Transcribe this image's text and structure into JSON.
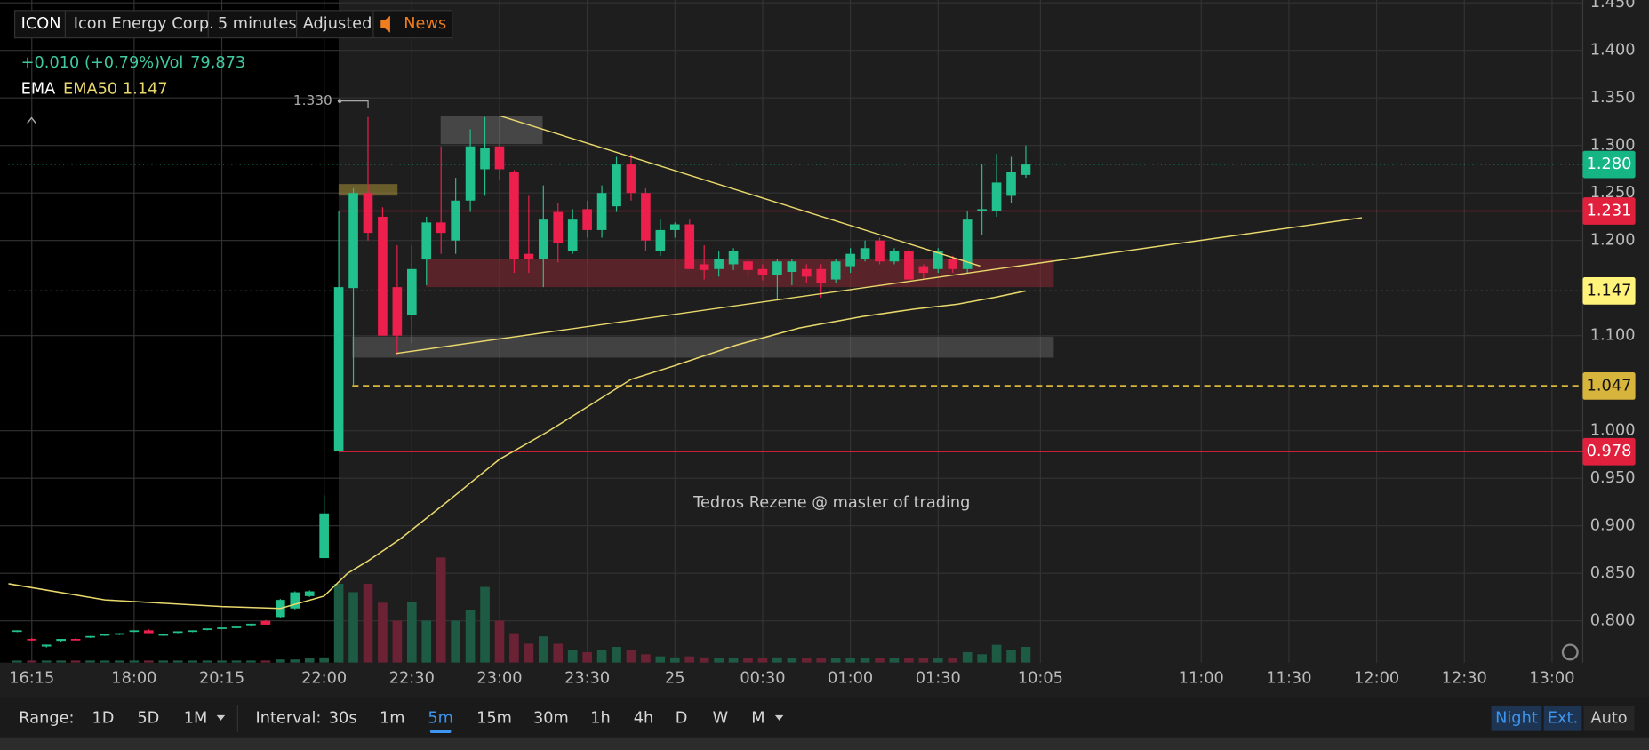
{
  "header": {
    "symbol": "ICON",
    "company": "Icon Energy Corp.",
    "interval": "5 minutes",
    "adjust": "Adjusted",
    "news": "News"
  },
  "chart_data": {
    "type": "candlestick",
    "change": "+0.010 (+0.79%)",
    "volume_label": "Vol",
    "volume_total": "79,873",
    "study": "EMA",
    "study_value": "EMA50 1.147",
    "watermark": "Tedros Rezene @ master of trading",
    "high_label": "1.330",
    "up_color": "#22c08c",
    "down_color": "#ec1f4d",
    "up_volume_color": "#1d5b45",
    "down_volume_color": "#6b2234",
    "xlim": [
      -21.6,
      86.1
    ],
    "ylim": [
      0.756,
      1.453
    ],
    "vlim": [
      0,
      100
    ],
    "grid": true,
    "yticks": [
      {
        "value": 1.45,
        "label": "1.450"
      },
      {
        "value": 1.4,
        "label": "1.400"
      },
      {
        "value": 1.35,
        "label": "1.350"
      },
      {
        "value": 1.3,
        "label": "1.300"
      },
      {
        "value": 1.25,
        "label": "1.250"
      },
      {
        "value": 1.2,
        "label": "1.200"
      },
      {
        "value": 1.1,
        "label": "1.100"
      },
      {
        "value": 1.0,
        "label": "1.000"
      },
      {
        "value": 0.95,
        "label": "0.950"
      },
      {
        "value": 0.9,
        "label": "0.900"
      },
      {
        "value": 0.85,
        "label": "0.850"
      },
      {
        "value": 0.8,
        "label": "0.800"
      }
    ],
    "xticks": [
      {
        "value": -20,
        "label": "16:15"
      },
      {
        "value": -13,
        "label": "18:00"
      },
      {
        "value": -7,
        "label": "20:15"
      },
      {
        "value": 0,
        "label": "22:00"
      },
      {
        "value": 6,
        "label": "22:30"
      },
      {
        "value": 12,
        "label": "23:00"
      },
      {
        "value": 18,
        "label": "23:30"
      },
      {
        "value": 24,
        "label": "25"
      },
      {
        "value": 30,
        "label": "00:30"
      },
      {
        "value": 36,
        "label": "01:00"
      },
      {
        "value": 42,
        "label": "01:30"
      },
      {
        "value": 49,
        "label": "10:05"
      },
      {
        "value": 60,
        "label": "11:00"
      },
      {
        "value": 66,
        "label": "11:30"
      },
      {
        "value": 72,
        "label": "12:00"
      },
      {
        "value": 78,
        "label": "12:30"
      },
      {
        "value": 84,
        "label": "13:00"
      }
    ],
    "x": [
      -21,
      -20,
      -19,
      -18,
      -17,
      -16,
      -15,
      -14,
      -13,
      -12,
      -11,
      -10,
      -9,
      -8,
      -7,
      -6,
      -5,
      -4,
      -3,
      -2,
      -1,
      0,
      1,
      2,
      3,
      4,
      5,
      6,
      7,
      8,
      9,
      10,
      11,
      12,
      13,
      14,
      15,
      16,
      17,
      18,
      19,
      20,
      21,
      22,
      23,
      24,
      25,
      26,
      27,
      28,
      29,
      30,
      31,
      32,
      33,
      34,
      35,
      36,
      37,
      38,
      39,
      40,
      41,
      42,
      43,
      44,
      45,
      46,
      47,
      48
    ],
    "ohlc": [
      [
        0.789,
        0.79,
        0.788,
        0.79
      ],
      [
        0.781,
        0.782,
        0.779,
        0.78
      ],
      [
        0.773,
        0.775,
        0.772,
        0.775
      ],
      [
        0.779,
        0.781,
        0.778,
        0.781
      ],
      [
        0.781,
        0.782,
        0.78,
        0.78
      ],
      [
        0.783,
        0.784,
        0.782,
        0.784
      ],
      [
        0.785,
        0.786,
        0.784,
        0.786
      ],
      [
        0.786,
        0.787,
        0.785,
        0.787
      ],
      [
        0.789,
        0.79,
        0.788,
        0.79
      ],
      [
        0.79,
        0.791,
        0.787,
        0.787
      ],
      [
        0.785,
        0.786,
        0.784,
        0.786
      ],
      [
        0.788,
        0.789,
        0.787,
        0.789
      ],
      [
        0.789,
        0.79,
        0.788,
        0.79
      ],
      [
        0.791,
        0.792,
        0.79,
        0.792
      ],
      [
        0.792,
        0.793,
        0.791,
        0.793
      ],
      [
        0.793,
        0.794,
        0.792,
        0.794
      ],
      [
        0.796,
        0.797,
        0.795,
        0.797
      ],
      [
        0.8,
        0.801,
        0.796,
        0.796
      ],
      [
        0.804,
        0.823,
        0.803,
        0.822
      ],
      [
        0.813,
        0.831,
        0.812,
        0.83
      ],
      [
        0.826,
        0.832,
        0.825,
        0.831
      ],
      [
        0.866,
        0.932,
        0.866,
        0.913
      ],
      [
        0.979,
        1.231,
        0.979,
        1.151
      ],
      [
        1.15,
        1.255,
        1.048,
        1.25
      ],
      [
        1.25,
        1.33,
        1.2,
        1.208
      ],
      [
        1.225,
        1.235,
        1.1,
        1.1
      ],
      [
        1.151,
        1.195,
        1.08,
        1.1
      ],
      [
        1.122,
        1.195,
        1.092,
        1.17
      ],
      [
        1.18,
        1.225,
        1.153,
        1.219
      ],
      [
        1.219,
        1.299,
        1.186,
        1.208
      ],
      [
        1.2,
        1.266,
        1.186,
        1.242
      ],
      [
        1.242,
        1.317,
        1.23,
        1.299
      ],
      [
        1.275,
        1.33,
        1.247,
        1.297
      ],
      [
        1.299,
        1.33,
        1.264,
        1.275
      ],
      [
        1.272,
        1.274,
        1.166,
        1.181
      ],
      [
        1.186,
        1.247,
        1.166,
        1.181
      ],
      [
        1.181,
        1.258,
        1.151,
        1.222
      ],
      [
        1.23,
        1.239,
        1.177,
        1.197
      ],
      [
        1.189,
        1.233,
        1.186,
        1.222
      ],
      [
        1.233,
        1.242,
        1.203,
        1.211
      ],
      [
        1.211,
        1.258,
        1.203,
        1.25
      ],
      [
        1.236,
        1.288,
        1.23,
        1.28
      ],
      [
        1.28,
        1.291,
        1.242,
        1.25
      ],
      [
        1.25,
        1.255,
        1.189,
        1.2
      ],
      [
        1.189,
        1.222,
        1.184,
        1.211
      ],
      [
        1.211,
        1.219,
        1.203,
        1.217
      ],
      [
        1.217,
        1.222,
        1.17,
        1.17
      ],
      [
        1.175,
        1.195,
        1.159,
        1.169
      ],
      [
        1.17,
        1.189,
        1.162,
        1.181
      ],
      [
        1.175,
        1.192,
        1.169,
        1.189
      ],
      [
        1.178,
        1.181,
        1.162,
        1.169
      ],
      [
        1.17,
        1.175,
        1.158,
        1.164
      ],
      [
        1.164,
        1.181,
        1.137,
        1.178
      ],
      [
        1.167,
        1.181,
        1.153,
        1.178
      ],
      [
        1.17,
        1.175,
        1.155,
        1.162
      ],
      [
        1.17,
        1.175,
        1.14,
        1.155
      ],
      [
        1.159,
        1.181,
        1.155,
        1.178
      ],
      [
        1.173,
        1.192,
        1.166,
        1.186
      ],
      [
        1.181,
        1.2,
        1.178,
        1.192
      ],
      [
        1.2,
        1.203,
        1.175,
        1.178
      ],
      [
        1.178,
        1.192,
        1.175,
        1.189
      ],
      [
        1.189,
        1.192,
        1.155,
        1.159
      ],
      [
        1.173,
        1.175,
        1.159,
        1.166
      ],
      [
        1.17,
        1.192,
        1.166,
        1.189
      ],
      [
        1.181,
        1.184,
        1.166,
        1.17
      ],
      [
        1.17,
        1.231,
        1.166,
        1.222
      ],
      [
        1.231,
        1.28,
        1.206,
        1.233
      ],
      [
        1.231,
        1.291,
        1.225,
        1.261
      ],
      [
        1.247,
        1.288,
        1.239,
        1.272
      ],
      [
        1.269,
        1.3,
        1.266,
        1.28
      ]
    ],
    "volume": [
      2,
      2,
      2,
      2,
      2,
      2,
      2,
      2,
      2,
      2,
      2,
      2,
      2,
      2,
      2,
      2,
      2,
      2,
      3,
      3,
      4,
      5,
      75,
      67,
      75,
      57,
      40,
      58,
      40,
      100,
      40,
      50,
      72,
      40,
      28,
      18,
      25,
      18,
      12,
      10,
      12,
      15,
      12,
      8,
      6,
      5,
      6,
      5,
      4,
      4,
      4,
      4,
      5,
      4,
      4,
      4,
      4,
      4,
      4,
      4,
      4,
      4,
      4,
      4,
      4,
      10,
      8,
      17,
      12,
      15
    ],
    "ema_line": {
      "color": "#e9d86c",
      "x": [
        -21.6,
        -15,
        -7,
        -3,
        0,
        1.6,
        3,
        5.2,
        8.8,
        12,
        15.3,
        18.1,
        21,
        23.9,
        28.2,
        32.5,
        36.8,
        40.4,
        43.3,
        45.8,
        48
      ],
      "values": [
        0.839,
        0.822,
        0.815,
        0.813,
        0.826,
        0.85,
        0.863,
        0.886,
        0.93,
        0.97,
        0.999,
        1.026,
        1.054,
        1.068,
        1.09,
        1.108,
        1.12,
        1.128,
        1.133,
        1.14,
        1.147
      ]
    },
    "levels": [
      {
        "value": 1.28,
        "label": "1.280",
        "color": "#16b584",
        "text_color": "#ffffff",
        "style": "dotted"
      },
      {
        "value": 1.231,
        "label": "1.231",
        "color": "#e0203d",
        "text_color": "#ffffff",
        "style": "solid"
      },
      {
        "value": 1.147,
        "label": "1.147",
        "color": "#fff37a",
        "text_color": "#111111",
        "style": "faint"
      },
      {
        "value": 1.047,
        "label": "1.047",
        "color": "#d7b43c",
        "text_color": "#111111",
        "style": "dashed"
      },
      {
        "value": 0.978,
        "label": "0.978",
        "color": "#e0203d",
        "text_color": "#ffffff",
        "style": "solid"
      }
    ]
  },
  "footer": {
    "range_label": "Range:",
    "ranges": [
      "1D",
      "5D",
      "1M"
    ],
    "interval_label": "Interval:",
    "intervals": [
      "30s",
      "1m",
      "5m",
      "15m",
      "30m",
      "1h",
      "4h",
      "D",
      "W",
      "M"
    ],
    "active_interval": 2,
    "modes": [
      "Night",
      "Ext.",
      "Auto"
    ]
  }
}
